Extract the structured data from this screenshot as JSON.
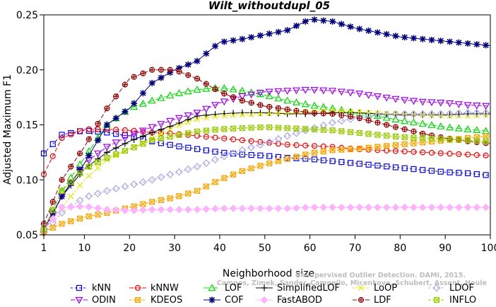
{
  "chart_data": {
    "type": "line",
    "title": "Wilt_withoutdupl_05",
    "xlabel": "Neighborhood size",
    "ylabel": "Adjusted Maximum F1",
    "xlim": [
      1,
      100
    ],
    "ylim": [
      0.05,
      0.25
    ],
    "x_ticks": [
      "1",
      "10",
      "20",
      "30",
      "40",
      "50",
      "60",
      "70",
      "80",
      "90",
      "100"
    ],
    "y_ticks": [
      "0.05",
      "0.10",
      "0.15",
      "0.20",
      "0.25"
    ],
    "x_tick_values": [
      1,
      10,
      20,
      30,
      40,
      50,
      60,
      70,
      80,
      90,
      100
    ],
    "y_tick_values": [
      0.05,
      0.1,
      0.15,
      0.2,
      0.25
    ],
    "x": [
      1,
      5,
      10,
      15,
      20,
      25,
      30,
      35,
      40,
      45,
      50,
      55,
      60,
      65,
      70,
      75,
      80,
      85,
      90,
      95,
      100
    ],
    "series": [
      {
        "name": "kNN",
        "color": "#0000ff",
        "marker": "square",
        "dash": "3,3",
        "values": [
          0.124,
          0.141,
          0.145,
          0.143,
          0.14,
          0.135,
          0.131,
          0.128,
          0.125,
          0.123,
          0.122,
          0.12,
          0.119,
          0.117,
          0.115,
          0.113,
          0.111,
          0.109,
          0.107,
          0.106,
          0.104
        ]
      },
      {
        "name": "kNNW",
        "color": "#ff0000",
        "marker": "circle",
        "dash": "6,3",
        "values": [
          0.105,
          0.138,
          0.146,
          0.146,
          0.145,
          0.143,
          0.142,
          0.14,
          0.138,
          0.136,
          0.134,
          0.132,
          0.131,
          0.13,
          0.128,
          0.127,
          0.126,
          0.125,
          0.124,
          0.123,
          0.122
        ]
      },
      {
        "name": "LOF",
        "color": "#00dd00",
        "marker": "triangle",
        "dash": "8,4",
        "values": [
          0.055,
          0.09,
          0.12,
          0.15,
          0.165,
          0.172,
          0.178,
          0.182,
          0.184,
          0.181,
          0.177,
          0.172,
          0.168,
          0.165,
          0.161,
          0.158,
          0.154,
          0.151,
          0.148,
          0.146,
          0.144
        ]
      },
      {
        "name": "SimplifiedLOF",
        "color": "#000000",
        "marker": "plus",
        "dash": "",
        "values": [
          0.055,
          0.085,
          0.11,
          0.125,
          0.135,
          0.143,
          0.15,
          0.158,
          0.16,
          0.161,
          0.161,
          0.16,
          0.16,
          0.161,
          0.161,
          0.16,
          0.159,
          0.159,
          0.159,
          0.16,
          0.16
        ]
      },
      {
        "name": "LoOP",
        "color": "#e6e600",
        "marker": "cross",
        "dash": "3,2",
        "values": [
          0.054,
          0.075,
          0.1,
          0.118,
          0.128,
          0.138,
          0.148,
          0.155,
          0.158,
          0.159,
          0.16,
          0.161,
          0.162,
          0.163,
          0.162,
          0.161,
          0.16,
          0.159,
          0.158,
          0.158,
          0.159
        ]
      },
      {
        "name": "LDOF",
        "color": "#a6a6ee",
        "marker": "diamond",
        "dash": "3,3",
        "values": [
          0.052,
          0.07,
          0.084,
          0.09,
          0.095,
          0.1,
          0.106,
          0.112,
          0.12,
          0.127,
          0.133,
          0.14,
          0.146,
          0.152,
          0.156,
          0.159,
          0.16,
          0.16,
          0.16,
          0.161,
          0.161
        ]
      },
      {
        "name": "ODIN",
        "color": "#a000ff",
        "marker": "triangle-down",
        "dash": "6,3",
        "values": [
          0.052,
          0.085,
          0.115,
          0.13,
          0.14,
          0.148,
          0.155,
          0.161,
          0.17,
          0.176,
          0.18,
          0.181,
          0.182,
          0.181,
          0.179,
          0.176,
          0.173,
          0.171,
          0.17,
          0.168,
          0.167
        ]
      },
      {
        "name": "KDEOS",
        "color": "#ffa500",
        "marker": "boxtimes",
        "dash": "4,2",
        "values": [
          0.053,
          0.06,
          0.066,
          0.07,
          0.075,
          0.08,
          0.084,
          0.09,
          0.1,
          0.108,
          0.114,
          0.119,
          0.124,
          0.127,
          0.128,
          0.13,
          0.132,
          0.134,
          0.136,
          0.138,
          0.14
        ]
      },
      {
        "name": "COF",
        "color": "#000080",
        "marker": "asterisk",
        "dash": "",
        "values": [
          0.055,
          0.085,
          0.115,
          0.15,
          0.165,
          0.188,
          0.2,
          0.208,
          0.225,
          0.228,
          0.232,
          0.236,
          0.246,
          0.244,
          0.238,
          0.234,
          0.23,
          0.228,
          0.226,
          0.224,
          0.222
        ]
      },
      {
        "name": "FastABOD",
        "color": "#ffb3ff",
        "marker": "diamond-filled",
        "dash": "",
        "values": [
          0.054,
          0.075,
          0.076,
          0.073,
          0.072,
          0.073,
          0.073,
          0.073,
          0.074,
          0.074,
          0.074,
          0.074,
          0.075,
          0.075,
          0.075,
          0.075,
          0.075,
          0.075,
          0.075,
          0.075,
          0.075
        ]
      },
      {
        "name": "LDF",
        "color": "#990000",
        "marker": "circleplus",
        "dash": "6,3",
        "values": [
          0.06,
          0.1,
          0.13,
          0.165,
          0.192,
          0.2,
          0.2,
          0.192,
          0.18,
          0.172,
          0.167,
          0.164,
          0.161,
          0.16,
          0.157,
          0.152,
          0.147,
          0.142,
          0.138,
          0.135,
          0.133
        ]
      },
      {
        "name": "INFLO",
        "color": "#99cc00",
        "marker": "boxtimes",
        "dash": "4,2",
        "values": [
          0.055,
          0.09,
          0.11,
          0.12,
          0.128,
          0.136,
          0.14,
          0.144,
          0.146,
          0.147,
          0.148,
          0.147,
          0.146,
          0.145,
          0.143,
          0.141,
          0.139,
          0.138,
          0.137,
          0.136,
          0.135
        ]
      }
    ],
    "legend_placement": "bottom",
    "legend_order": [
      "kNN",
      "kNNW",
      "LOF",
      "SimplifiedLOF",
      "LoOP",
      "LDOF",
      "ODIN",
      "KDEOS",
      "COF",
      "FastABOD",
      "LDF",
      "INFLO"
    ],
    "grid": false
  },
  "watermark": {
    "line1": "Unsupervised Outlier Detection. DAMI, 2015.",
    "line2": "Campos, Zimek, Sander, Campello, Micenkova, Schubert, Assent, Houle"
  }
}
